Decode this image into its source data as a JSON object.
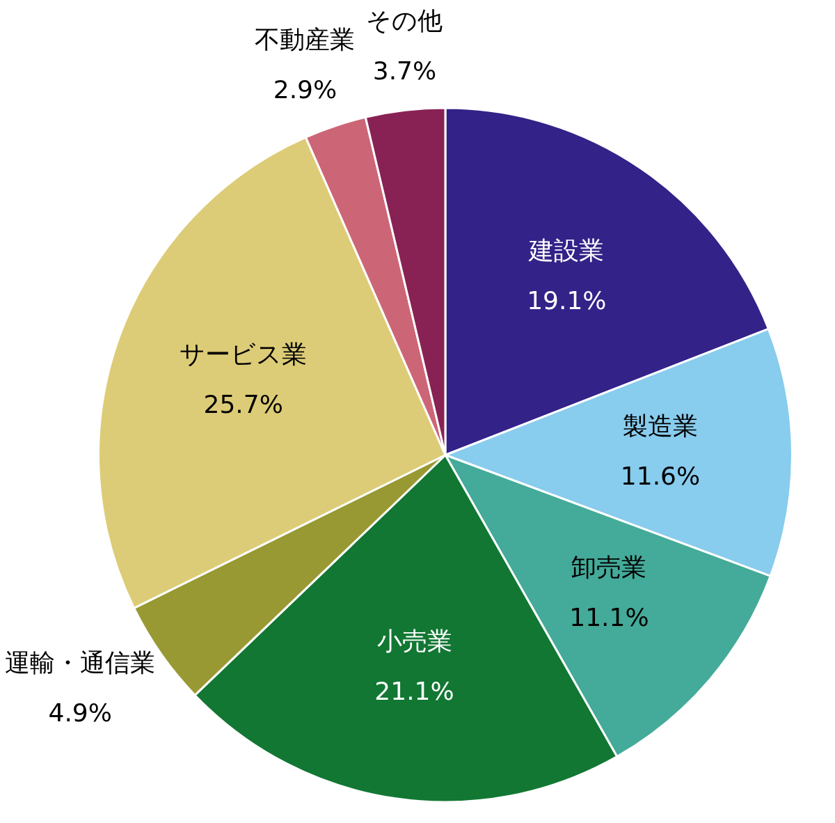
{
  "chart_data": {
    "type": "pie",
    "categories": [
      "建設業",
      "製造業",
      "卸売業",
      "小売業",
      "運輸・通信業",
      "サービス業",
      "不動産業",
      "その他"
    ],
    "values": [
      19.1,
      11.6,
      11.1,
      21.1,
      4.9,
      25.7,
      2.9,
      3.7
    ],
    "value_labels": [
      "19.1%",
      "11.6%",
      "11.1%",
      "21.1%",
      "4.9%",
      "25.7%",
      "2.9%",
      "3.7%"
    ],
    "colors": [
      "#332288",
      "#88ccee",
      "#44aa99",
      "#117733",
      "#999933",
      "#ddcc77",
      "#cc6677",
      "#882255"
    ],
    "legend": false
  }
}
